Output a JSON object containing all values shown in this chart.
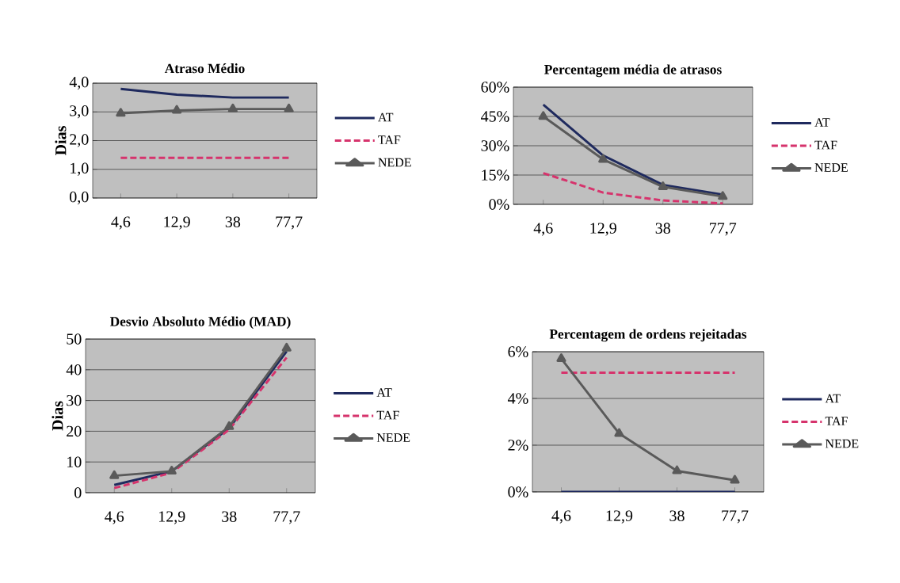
{
  "chart_data": [
    {
      "type": "line",
      "title": "Atraso Médio",
      "ylabel": "Dias",
      "categories": [
        "4,6",
        "12,9",
        "38",
        "77,7"
      ],
      "series": [
        {
          "name": "AT",
          "color": "#1f2a5e",
          "values": [
            3.8,
            3.6,
            3.5,
            3.5
          ],
          "line_style": "solid"
        },
        {
          "name": "TAF",
          "color": "#d6336c",
          "values": [
            1.4,
            1.4,
            1.4,
            1.4
          ],
          "line_style": "dashed"
        },
        {
          "name": "NEDE",
          "color": "#5a5a5a",
          "values": [
            2.95,
            3.05,
            3.1,
            3.1
          ],
          "line_style": "solid",
          "marker": "triangle"
        }
      ],
      "ylim": [
        0,
        4
      ],
      "yticks": [
        {
          "value": 0,
          "label": "0,0"
        },
        {
          "value": 1,
          "label": "1,0"
        },
        {
          "value": 2,
          "label": "2,0"
        },
        {
          "value": 3,
          "label": "3,0"
        },
        {
          "value": 4,
          "label": "4,0"
        }
      ],
      "grid": "y",
      "legend": "right"
    },
    {
      "type": "line",
      "title": "Percentagem média de atrasos",
      "categories": [
        "4,6",
        "12,9",
        "38",
        "77,7"
      ],
      "series": [
        {
          "name": "AT",
          "color": "#1f2a5e",
          "values": [
            51,
            25,
            10,
            5
          ],
          "line_style": "solid"
        },
        {
          "name": "TAF",
          "color": "#d6336c",
          "values": [
            16,
            6,
            2,
            0.5
          ],
          "line_style": "dashed"
        },
        {
          "name": "NEDE",
          "color": "#5a5a5a",
          "values": [
            45,
            23,
            9,
            4
          ],
          "line_style": "solid",
          "marker": "triangle"
        }
      ],
      "ylim": [
        0,
        60
      ],
      "yticks": [
        {
          "value": 0,
          "label": "0%"
        },
        {
          "value": 15,
          "label": "15%"
        },
        {
          "value": 30,
          "label": "30%"
        },
        {
          "value": 45,
          "label": "45%"
        },
        {
          "value": 60,
          "label": "60%"
        }
      ],
      "grid": "y",
      "legend": "right"
    },
    {
      "type": "line",
      "title": "Desvio Absoluto Médio (MAD)",
      "ylabel": "Dias",
      "categories": [
        "4,6",
        "12,9",
        "38",
        "77,7"
      ],
      "series": [
        {
          "name": "AT",
          "color": "#1f2a5e",
          "values": [
            2.5,
            7,
            21,
            46
          ],
          "line_style": "solid"
        },
        {
          "name": "TAF",
          "color": "#d6336c",
          "values": [
            1.5,
            6.5,
            20.5,
            44
          ],
          "line_style": "dashed"
        },
        {
          "name": "NEDE",
          "color": "#5a5a5a",
          "values": [
            5.5,
            7,
            21.5,
            47
          ],
          "line_style": "solid",
          "marker": "triangle"
        }
      ],
      "ylim": [
        0,
        50
      ],
      "yticks": [
        0,
        10,
        20,
        30,
        40,
        50
      ],
      "grid": "y",
      "legend": "right"
    },
    {
      "type": "line",
      "title": "Percentagem de ordens rejeitadas",
      "categories": [
        "4,6",
        "12,9",
        "38",
        "77,7"
      ],
      "series": [
        {
          "name": "AT",
          "color": "#1f2a5e",
          "values": [
            0,
            0,
            0,
            0
          ],
          "line_style": "solid"
        },
        {
          "name": "TAF",
          "color": "#d6336c",
          "values": [
            5.1,
            5.1,
            5.1,
            5.1
          ],
          "line_style": "dashed"
        },
        {
          "name": "NEDE",
          "color": "#5a5a5a",
          "values": [
            5.7,
            2.5,
            0.9,
            0.5
          ],
          "line_style": "solid",
          "marker": "triangle"
        }
      ],
      "ylim": [
        0,
        6
      ],
      "yticks": [
        {
          "value": 0,
          "label": "0%"
        },
        {
          "value": 2,
          "label": "2%"
        },
        {
          "value": 4,
          "label": "4%"
        },
        {
          "value": 6,
          "label": "6%"
        }
      ],
      "grid": "y",
      "legend": "right"
    }
  ]
}
